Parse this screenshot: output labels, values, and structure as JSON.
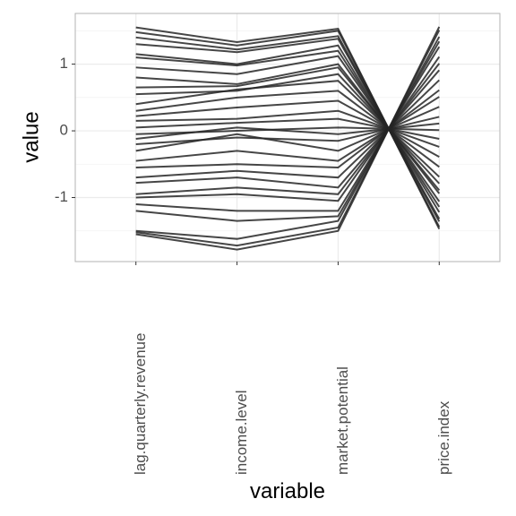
{
  "chart_data": {
    "type": "parallel",
    "x_label": "variable",
    "y_label": "value",
    "categories": [
      "lag.quarterly.revenue",
      "income.level",
      "market.potential",
      "price.index"
    ],
    "color": "#262626",
    "ylim": [
      -1.96,
      1.76
    ],
    "yticks": [
      -1,
      0,
      1
    ],
    "minor_yticks": [
      -1.5,
      -0.5,
      0.5,
      1.5
    ],
    "grid": true,
    "series": [
      {
        "values": [
          1.55,
          1.33,
          1.53,
          -1.47
        ]
      },
      {
        "values": [
          1.48,
          1.28,
          1.5,
          -1.44
        ]
      },
      {
        "values": [
          1.4,
          1.22,
          1.42,
          -1.36
        ]
      },
      {
        "values": [
          1.3,
          1.18,
          1.38,
          -1.32
        ]
      },
      {
        "values": [
          1.15,
          1.0,
          1.28,
          -1.22
        ]
      },
      {
        "values": [
          1.1,
          0.98,
          1.2,
          -1.14
        ]
      },
      {
        "values": [
          0.95,
          0.85,
          1.12,
          -1.06
        ]
      },
      {
        "values": [
          0.8,
          0.7,
          1.0,
          -0.94
        ]
      },
      {
        "values": [
          0.65,
          0.67,
          0.95,
          -0.89
        ]
      },
      {
        "values": [
          0.55,
          0.6,
          0.85,
          -0.79
        ]
      },
      {
        "values": [
          0.4,
          0.62,
          0.75,
          -0.69
        ]
      },
      {
        "values": [
          0.3,
          0.5,
          0.6,
          -0.54
        ]
      },
      {
        "values": [
          0.22,
          0.35,
          0.45,
          -0.39
        ]
      },
      {
        "values": [
          0.15,
          0.18,
          0.3,
          -0.24
        ]
      },
      {
        "values": [
          0.05,
          0.12,
          0.18,
          -0.12
        ]
      },
      {
        "values": [
          -0.05,
          0.0,
          0.05,
          0.01
        ]
      },
      {
        "values": [
          -0.12,
          0.05,
          -0.05,
          0.11
        ]
      },
      {
        "values": [
          -0.2,
          -0.1,
          -0.15,
          0.21
        ]
      },
      {
        "values": [
          -0.3,
          -0.05,
          -0.3,
          0.36
        ]
      },
      {
        "values": [
          -0.45,
          -0.3,
          -0.45,
          0.51
        ]
      },
      {
        "values": [
          -0.55,
          -0.5,
          -0.55,
          0.61
        ]
      },
      {
        "values": [
          -0.7,
          -0.6,
          -0.7,
          0.76
        ]
      },
      {
        "values": [
          -0.78,
          -0.7,
          -0.85,
          0.91
        ]
      },
      {
        "values": [
          -0.95,
          -0.85,
          -0.95,
          1.01
        ]
      },
      {
        "values": [
          -1.0,
          -0.95,
          -1.05,
          1.11
        ]
      },
      {
        "values": [
          -1.1,
          -1.2,
          -1.2,
          1.26
        ]
      },
      {
        "values": [
          -1.2,
          -1.35,
          -1.28,
          1.34
        ]
      },
      {
        "values": [
          -1.5,
          -1.62,
          -1.35,
          1.41
        ]
      },
      {
        "values": [
          -1.52,
          -1.72,
          -1.45,
          1.51
        ]
      },
      {
        "values": [
          -1.55,
          -1.78,
          -1.5,
          1.56
        ]
      }
    ]
  }
}
